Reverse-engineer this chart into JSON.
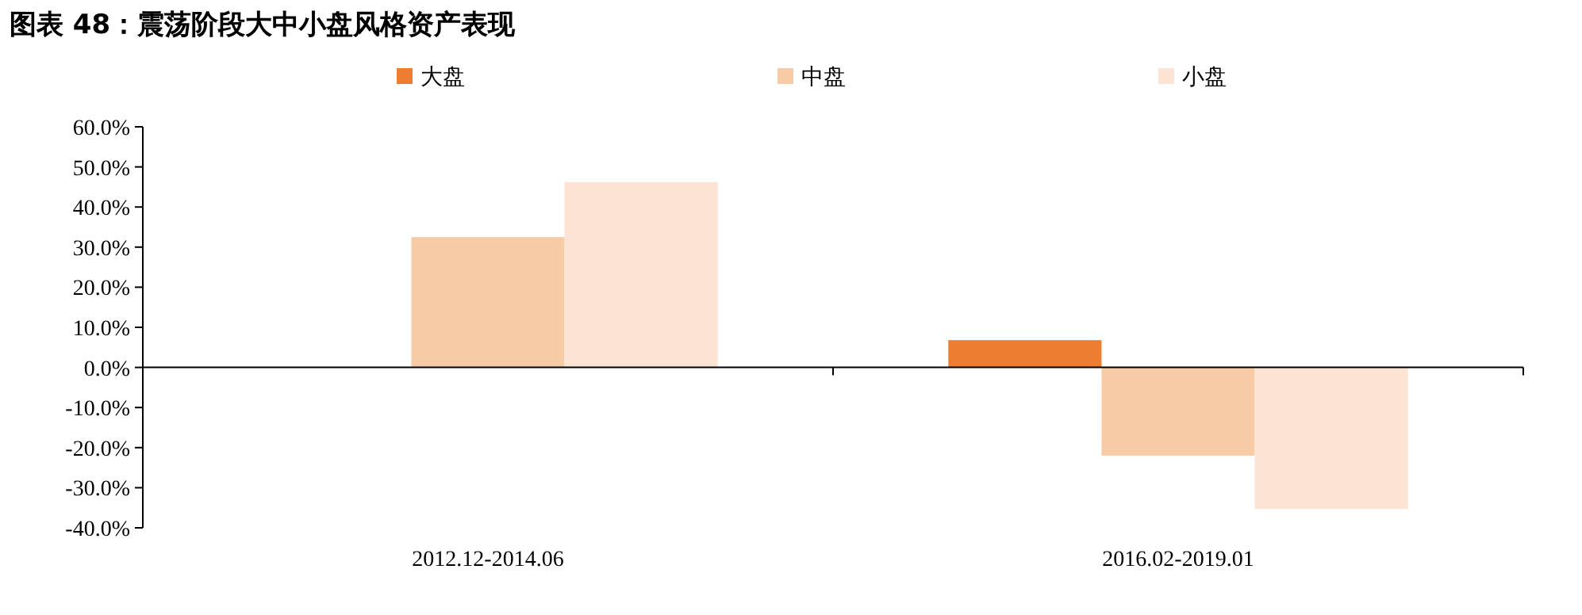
{
  "chart_data": {
    "type": "bar",
    "title": "图表 48：震荡阶段大中小盘风格资产表现",
    "categories": [
      "2012.12-2014.06",
      "2016.02-2019.01"
    ],
    "series": [
      {
        "name": "大盘",
        "color": "#ed7d31",
        "values": [
          0.0,
          6.8
        ]
      },
      {
        "name": "中盘",
        "color": "#f8cba7",
        "values": [
          32.5,
          -22.0
        ]
      },
      {
        "name": "小盘",
        "color": "#fce4d4",
        "values": [
          46.2,
          -35.3
        ]
      }
    ],
    "ylim": [
      -40,
      60
    ],
    "yticks": [
      {
        "value": -40,
        "label": "-40.0%"
      },
      {
        "value": -30,
        "label": "-30.0%"
      },
      {
        "value": -20,
        "label": "-20.0%"
      },
      {
        "value": -10,
        "label": "-10.0%"
      },
      {
        "value": 0,
        "label": "0.0%"
      },
      {
        "value": 10,
        "label": "10.0%"
      },
      {
        "value": 20,
        "label": "20.0%"
      },
      {
        "value": 30,
        "label": "30.0%"
      },
      {
        "value": 40,
        "label": "40.0%"
      },
      {
        "value": 50,
        "label": "50.0%"
      },
      {
        "value": 60,
        "label": "60.0%"
      }
    ],
    "legend": "top"
  }
}
